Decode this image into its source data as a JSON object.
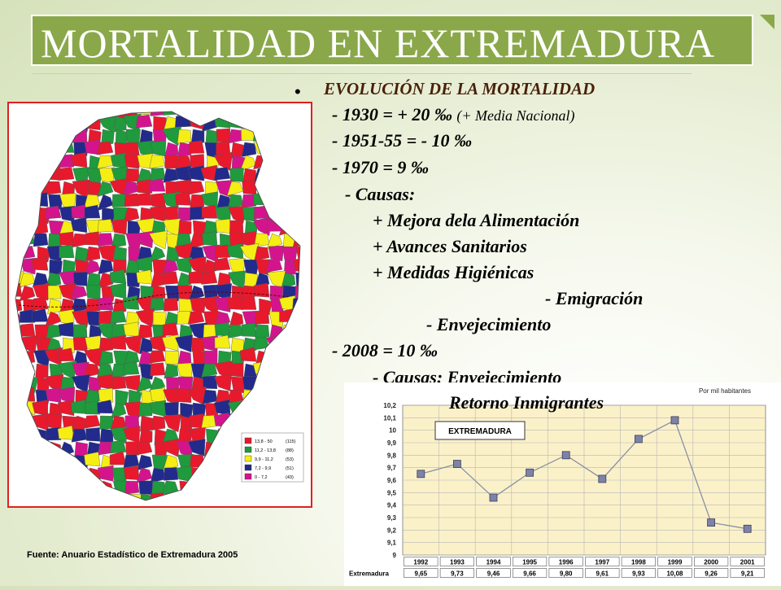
{
  "slide": {
    "title": "MORTALIDAD EN EXTREMADURA",
    "heading": "EVOLUCIÓN DE LA MORTALIDAD",
    "lines": {
      "l1_main": "- 1930 = + 20 ‰ ",
      "l1_note": "(+ Media Nacional)",
      "l2": "- 1951-55 = - 10 ‰",
      "l3": "- 1970 = 9 ‰",
      "l4": "- Causas:",
      "l5": "+ Mejora dela Alimentación",
      "l6": "+ Avances Sanitarios",
      "l7": "+ Medidas Higiénicas",
      "l8": "- Emigración",
      "l9": "- Envejecimiento",
      "l10": "- 2008 = 10 ‰",
      "l11": "- Causas: Envejecimiento",
      "l12": "Retorno Inmigrantes"
    },
    "source": "Fuente: Anuario Estadístico  de Extremadura 2005"
  },
  "map": {
    "legend": [
      {
        "range": "13,8 - 50",
        "count": "(115)",
        "color": "#e8192c"
      },
      {
        "range": "11,2 - 13,8",
        "count": "(88)",
        "color": "#1f9a3c"
      },
      {
        "range": "9,9 - 11,2",
        "count": "(53)",
        "color": "#f5ee14"
      },
      {
        "range": "7,2 - 9,9",
        "count": "(51)",
        "color": "#222a8c"
      },
      {
        "range": "0 - 7,2",
        "count": "(43)",
        "color": "#d4148c"
      }
    ]
  },
  "chart_data": {
    "type": "line",
    "title": "EXTREMADURA",
    "unit_label": "Por mil habitantes",
    "categories": [
      "1992",
      "1993",
      "1994",
      "1995",
      "1996",
      "1997",
      "1998",
      "1999",
      "2000",
      "2001"
    ],
    "values": [
      9.65,
      9.73,
      9.46,
      9.66,
      9.8,
      9.61,
      9.93,
      10.08,
      9.26,
      9.21
    ],
    "value_labels": [
      "9,65",
      "9,73",
      "9,46",
      "9,66",
      "9,80",
      "9,61",
      "9,93",
      "10,08",
      "9,26",
      "9,21"
    ],
    "row_label": "Extremadura",
    "ylim": [
      9,
      10.2
    ],
    "yticks": [
      "9",
      "9,1",
      "9,2",
      "9,3",
      "9,4",
      "9,5",
      "9,6",
      "9,7",
      "9,8",
      "9,9",
      "10",
      "10,1",
      "10,2"
    ],
    "grid": true
  }
}
